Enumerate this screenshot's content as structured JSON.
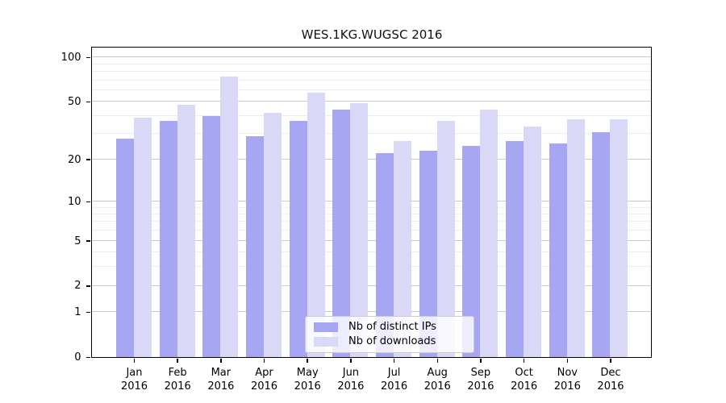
{
  "chart_data": {
    "type": "bar",
    "title": "WES.1KG.WUGSC 2016",
    "categories": [
      "Jan 2016",
      "Feb 2016",
      "Mar 2016",
      "Apr 2016",
      "May 2016",
      "Jun 2016",
      "Jul 2016",
      "Aug 2016",
      "Sep 2016",
      "Oct 2016",
      "Nov 2016",
      "Dec 2016"
    ],
    "series": [
      {
        "name": "Nb of distinct IPs",
        "color": "#a6a6f2",
        "values": [
          28,
          37,
          40,
          29,
          37,
          44,
          22,
          23,
          25,
          27,
          26,
          31
        ]
      },
      {
        "name": "Nb of downloads",
        "color": "#d9d9f7",
        "values": [
          39,
          48,
          74,
          42,
          58,
          49,
          27,
          37,
          44,
          34,
          38,
          38
        ]
      }
    ],
    "xlabel": "",
    "ylabel": "",
    "yscale": "log1p",
    "ylim": [
      0,
      118
    ],
    "yticks": [
      0,
      1,
      2,
      5,
      10,
      20,
      50,
      100
    ],
    "y_minor_gridlines": [
      3,
      4,
      6,
      7,
      8,
      9,
      30,
      40,
      60,
      70,
      80,
      90
    ],
    "grid": "on",
    "legend_position": "lower center inside plot",
    "colors": {
      "major_grid": "#c9c9c9",
      "minor_grid": "#ededed",
      "frame": "#000000",
      "background": "#ffffff"
    }
  }
}
